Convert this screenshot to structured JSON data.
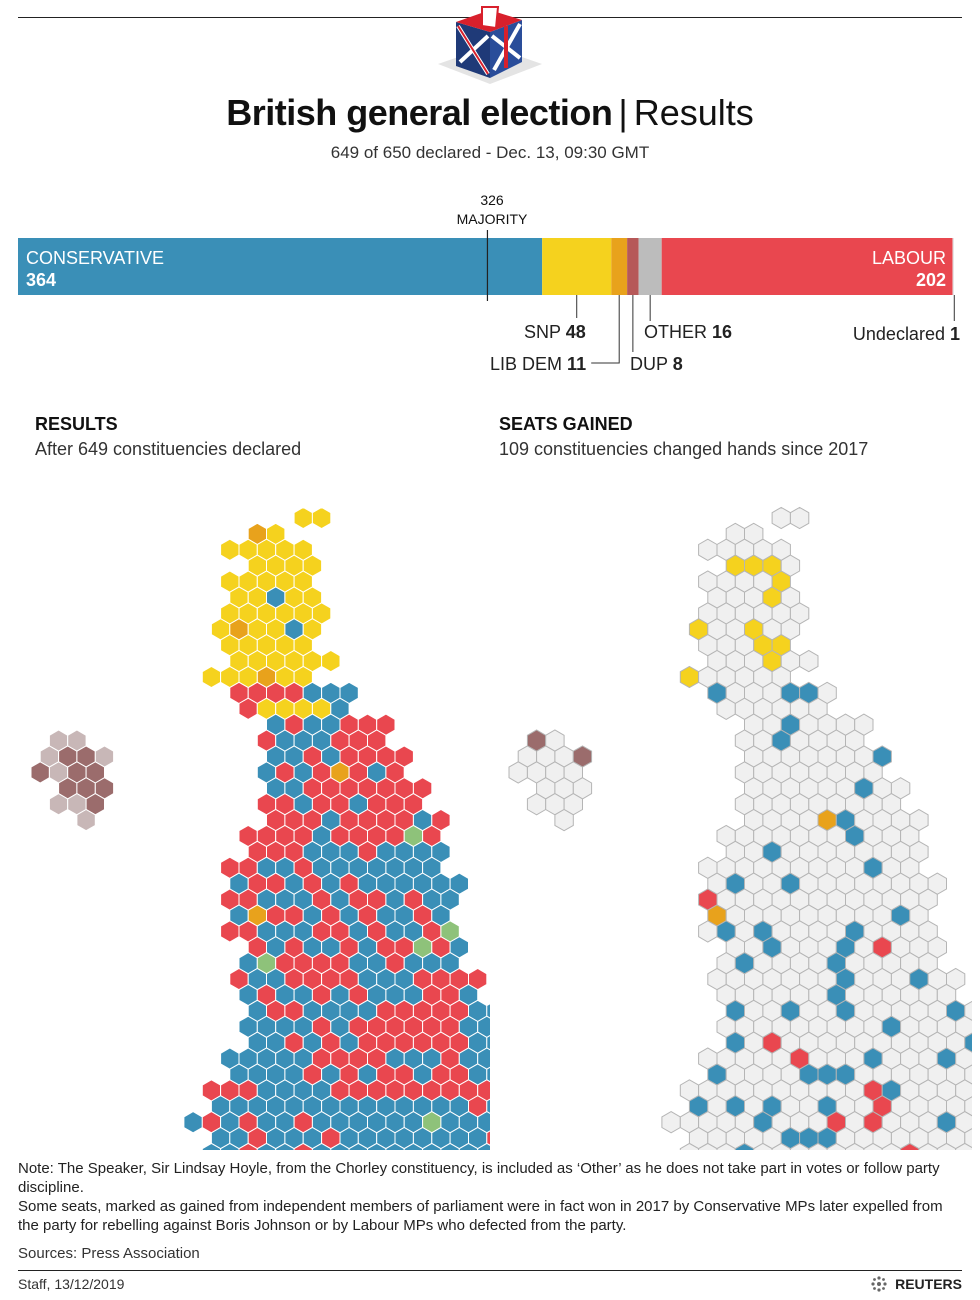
{
  "header": {
    "title_main": "British general election",
    "title_separator": "|",
    "title_sub": "Results",
    "subtitle": "649 of 650 declared - Dec. 13, 09:30 GMT"
  },
  "colors": {
    "conservative": "#3a8fb7",
    "labour": "#e9474f",
    "snp": "#f5d21e",
    "lib_dem": "#e8a21c",
    "dup": "#b65858",
    "other": "#bcbcbc",
    "undeclared": "#e6e6e6",
    "green": "#8ec27a",
    "ni_light": "#c8b7b7",
    "ni_dark": "#9b6c6c",
    "neutral": "#f0f0f0"
  },
  "majority": {
    "value": "326",
    "label": "MAJORITY"
  },
  "chart_data": [
    {
      "type": "bar",
      "orientation": "horizontal-stacked",
      "total_seats": 650,
      "majority_line": 326,
      "categories": [
        "CONSERVATIVE",
        "SNP",
        "LIB DEM",
        "DUP",
        "OTHER",
        "LABOUR",
        "Undeclared"
      ],
      "values": [
        364,
        48,
        11,
        8,
        16,
        202,
        1
      ],
      "labels": {
        "conservative": "CONSERVATIVE",
        "labour": "LABOUR",
        "snp": "SNP",
        "lib_dem": "LIB DEM",
        "dup": "DUP",
        "other": "OTHER",
        "undeclared": "Undeclared"
      },
      "values_text": {
        "conservative": "364",
        "labour": "202",
        "snp": "48",
        "lib_dem": "11",
        "dup": "8",
        "other": "16",
        "undeclared": "1"
      }
    },
    {
      "type": "heatmap",
      "title": "RESULTS",
      "subtitle": "After 649 constituencies declared"
    },
    {
      "type": "heatmap",
      "title": "SEATS GAINED",
      "subtitle": "109 constituencies changed hands since 2017"
    }
  ],
  "notes": {
    "line1": "Note: The Speaker, Sir Lindsay Hoyle, from the Chorley constituency, is included as ‘Other’ as he does not take part in votes or follow party discipline.",
    "line2": "Some seats, marked as gained from independent members of parliament were in fact won in 2017 by Conservative MPs later expelled from the party for rebelling against Boris Johnson or by Labour MPs who defected from the party."
  },
  "footer": {
    "sources": "Sources: Press Association",
    "credit": "Staff,  13/12/2019",
    "brand": "REUTERS"
  }
}
